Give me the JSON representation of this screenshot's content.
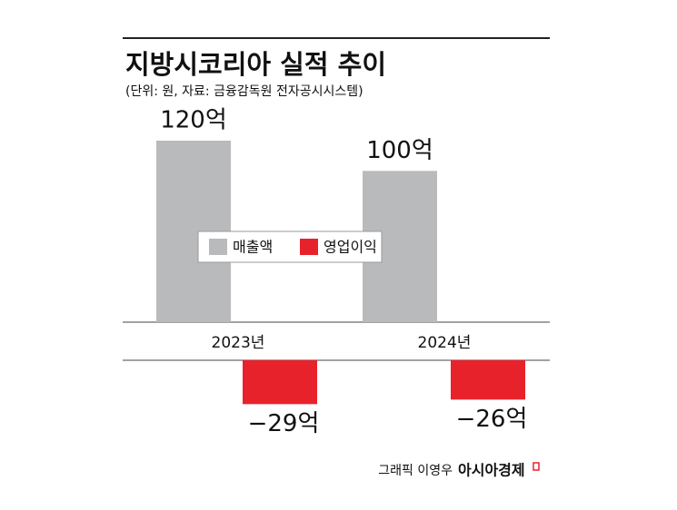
{
  "chart_data": {
    "type": "bar",
    "title": "지방시코리아 실적 추이",
    "subtitle": "(단위: 원, 자료: 금융감독원 전자공시시스템)",
    "categories": [
      "2023년",
      "2024년"
    ],
    "series": [
      {
        "name": "매출액",
        "color": "#b9babc",
        "values": [
          120,
          100
        ],
        "value_labels": [
          "120억",
          "100억"
        ]
      },
      {
        "name": "영업이익",
        "color": "#e8222a",
        "values": [
          -29,
          -26
        ],
        "value_labels": [
          "−29억",
          "−26억"
        ]
      }
    ],
    "credit": "그래픽 이영우",
    "publisher": "아시아경제"
  }
}
